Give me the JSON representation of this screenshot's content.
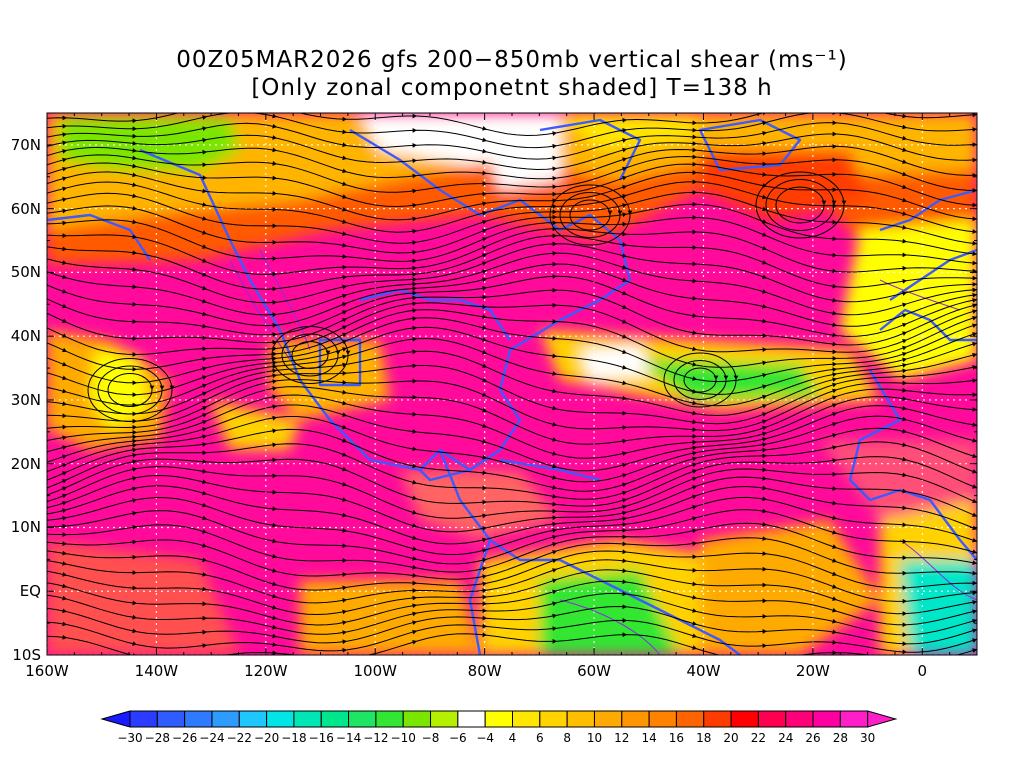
{
  "title_line1": "00Z05MAR2026 gfs 200−850mb vertical shear (ms⁻¹)",
  "title_line2": "[Only zonal componetnt shaded] T=138 h",
  "lat_labels": [
    "70N",
    "60N",
    "50N",
    "40N",
    "30N",
    "20N",
    "10N",
    "EQ",
    "10S"
  ],
  "lat_values": [
    70,
    60,
    50,
    40,
    30,
    20,
    10,
    0,
    -10
  ],
  "lon_labels": [
    "160W",
    "140W",
    "120W",
    "100W",
    "80W",
    "60W",
    "40W",
    "20W",
    "0"
  ],
  "lon_values": [
    -160,
    -140,
    -120,
    -100,
    -80,
    -60,
    -40,
    -20,
    0
  ],
  "extent": {
    "lon_min": -160,
    "lon_max": 10,
    "lat_min": -10,
    "lat_max": 75
  },
  "colorbar_labels": [
    "-30",
    "-28",
    "-26",
    "-24",
    "-22",
    "-20",
    "-18",
    "-16",
    "-14",
    "-12",
    "-10",
    "-8",
    "-6",
    "-4",
    "4",
    "6",
    "8",
    "10",
    "12",
    "14",
    "16",
    "18",
    "20",
    "22",
    "24",
    "26",
    "28",
    "30"
  ],
  "colorbar_colors": [
    "#1a1aff",
    "#2b3bff",
    "#2e5cff",
    "#2f7bff",
    "#2e9bff",
    "#1ec8ff",
    "#00e6e6",
    "#00e6b4",
    "#00e68c",
    "#1ee664",
    "#33e633",
    "#7ae600",
    "#b4f000",
    "#ffffff",
    "#ffff00",
    "#ffe600",
    "#ffd200",
    "#ffbe00",
    "#ffaa00",
    "#ff9600",
    "#ff8200",
    "#ff6400",
    "#ff3c00",
    "#ff0000",
    "#ff0050",
    "#ff0078",
    "#ff00a0",
    "#ff1ec8",
    "#ff1ec8"
  ],
  "colors": {
    "coast": "#3c5aff",
    "contour": "#8a2be2",
    "streamline": "#000000",
    "grid": "#ffffff"
  }
}
